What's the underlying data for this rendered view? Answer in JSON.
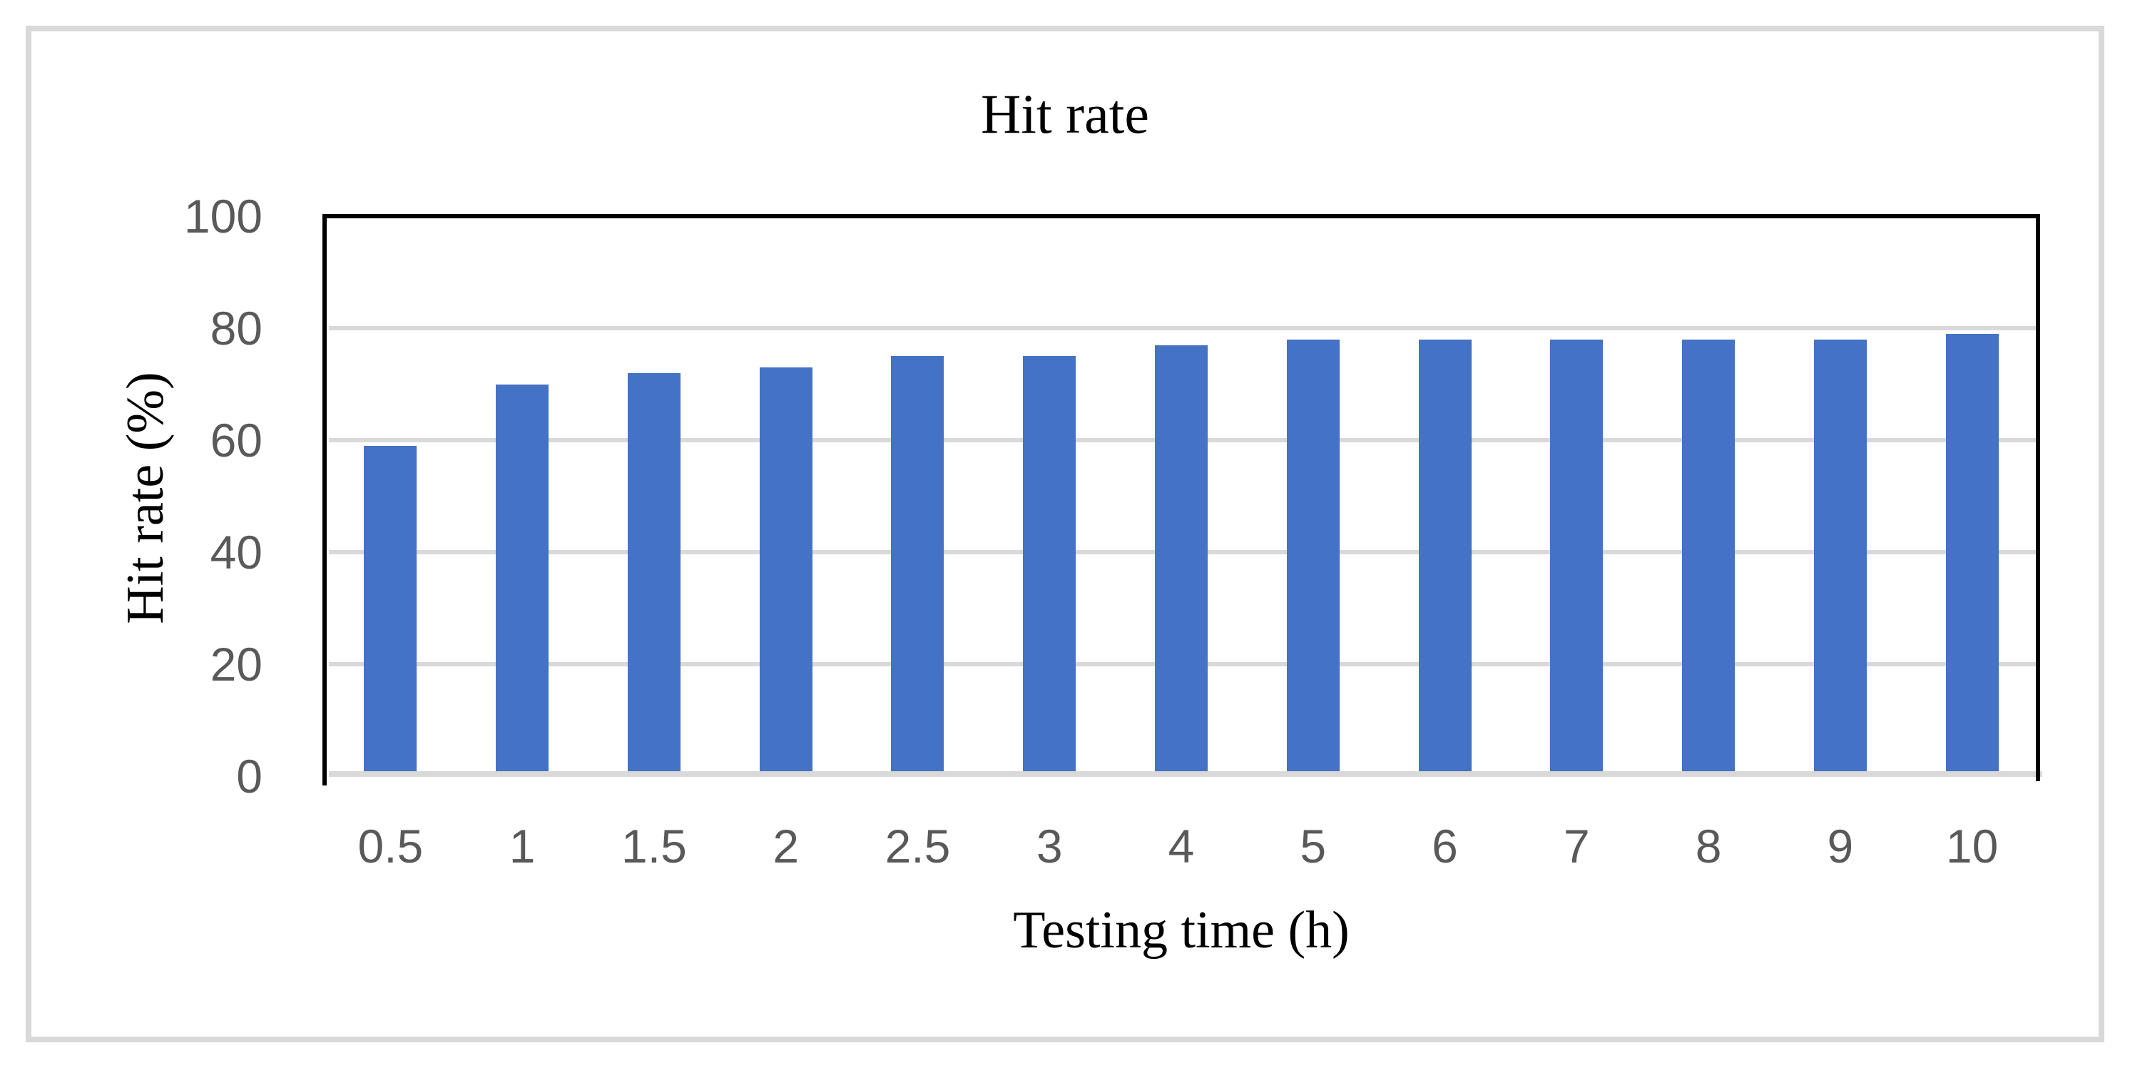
{
  "chart_data": {
    "type": "bar",
    "title": "Hit rate",
    "xlabel": "Testing time (h)",
    "ylabel": "Hit rate (%)",
    "categories": [
      "0.5",
      "1",
      "1.5",
      "2",
      "2.5",
      "3",
      "4",
      "5",
      "6",
      "7",
      "8",
      "9",
      "10"
    ],
    "values": [
      59,
      70,
      72,
      73,
      75,
      75,
      77,
      78,
      78,
      78,
      78,
      78,
      79
    ],
    "ylim": [
      0,
      100
    ],
    "yticks": [
      0,
      20,
      40,
      60,
      80,
      100
    ],
    "grid": "horizontal",
    "legend": "none",
    "colors": {
      "bar": "#4472c4",
      "gridline": "#d9d9d9",
      "axis_line": "#d9d9d9",
      "plot_frame": "#000000",
      "tick_label": "#595959",
      "title_text": "#000000",
      "figure_border": "#d9d9d9"
    }
  }
}
